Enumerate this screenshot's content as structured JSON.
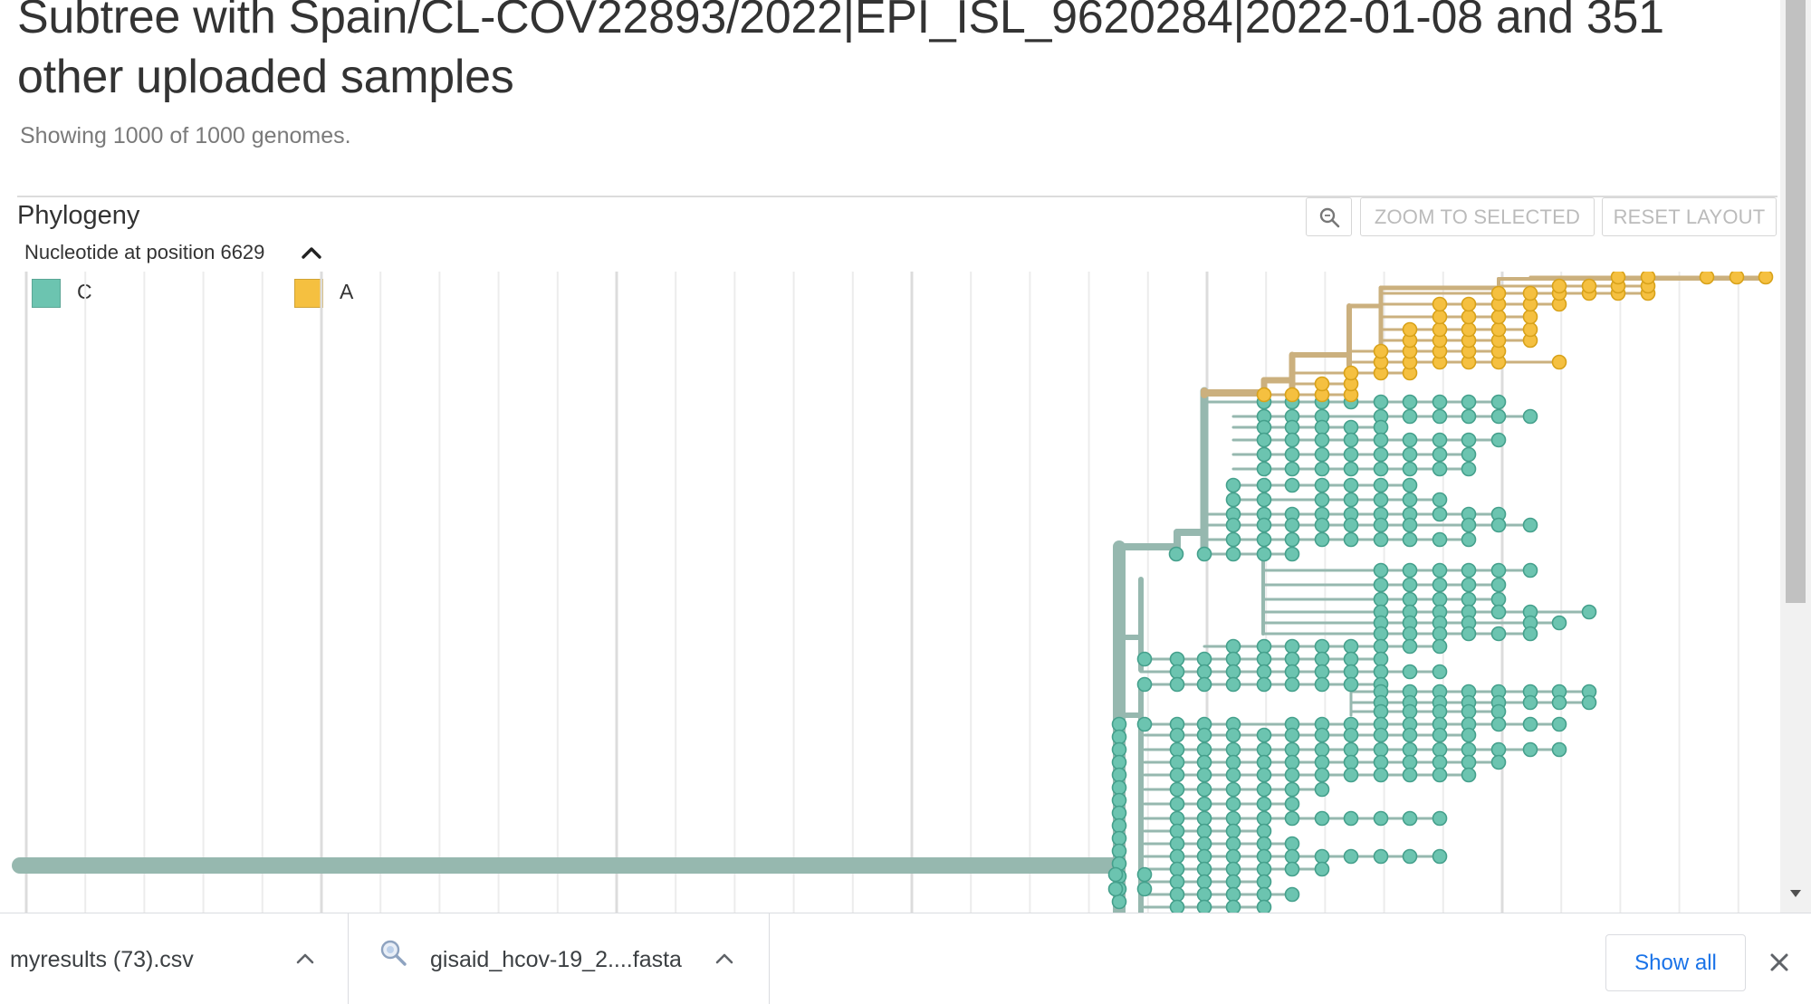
{
  "page": {
    "title": "Subtree with Spain/CL-COV22893/2022|EPI_ISL_9620284|2022-01-08 and 351 other uploaded samples",
    "subtitle": "Showing 1000 of 1000 genomes."
  },
  "panel": {
    "title": "Phylogeny",
    "zoom_icon": "search-icon",
    "zoom_to_selected_label": "ZOOM TO SELECTED",
    "reset_layout_label": "RESET LAYOUT"
  },
  "legend": {
    "title": "Nucleotide at position 6629",
    "toggle_icon": "chevron-up-icon",
    "items": [
      {
        "label": "C",
        "color": "#6CC4B0"
      },
      {
        "label": "A",
        "color": "#F5C040"
      }
    ]
  },
  "tree": {
    "branch_colors": {
      "C": "#96B8AF",
      "A": "#CBB07E"
    },
    "node_colors": {
      "C": "#6CC4B0",
      "A": "#F5C040"
    }
  },
  "downloads": {
    "items": [
      {
        "name": "myresults (73).csv",
        "icon": "csv-file-icon"
      },
      {
        "name": "gisaid_hcov-19_2....fasta",
        "icon": "search-file-icon"
      }
    ],
    "show_all_label": "Show all",
    "close_icon": "close-icon"
  }
}
